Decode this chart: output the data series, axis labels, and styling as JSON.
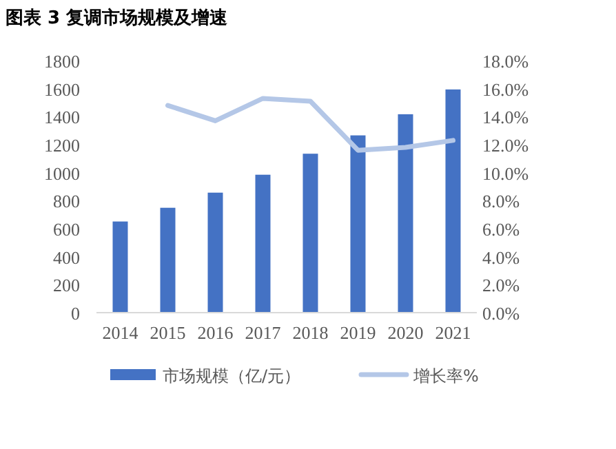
{
  "chart_data": {
    "type": "bar",
    "title": "图表 3 复调市场规模及增速",
    "categories": [
      "2014",
      "2015",
      "2016",
      "2017",
      "2018",
      "2019",
      "2020",
      "2021"
    ],
    "series": [
      {
        "name": "市场规模（亿/元）",
        "color": "#4472c4",
        "values": [
          651,
          749,
          857,
          985,
          1135,
          1266,
          1417,
          1594
        ]
      },
      {
        "name": "增长率%",
        "type": "line",
        "axis": "y2",
        "color": "#b4c7e7",
        "values": [
          null,
          14.8,
          13.7,
          15.3,
          15.1,
          11.6,
          11.8,
          12.3
        ]
      }
    ],
    "ylim": [
      0,
      1800
    ],
    "yticks": [
      0,
      200,
      400,
      600,
      800,
      1000,
      1200,
      1400,
      1600,
      1800
    ],
    "y2lim": [
      0,
      18
    ],
    "y2ticks": [
      {
        "value": 0,
        "label": "0.0%"
      },
      {
        "value": 2,
        "label": "2.0%"
      },
      {
        "value": 4,
        "label": "4.0%"
      },
      {
        "value": 6,
        "label": "6.0%"
      },
      {
        "value": 8,
        "label": "8.0%"
      },
      {
        "value": 10,
        "label": "10.0%"
      },
      {
        "value": 12,
        "label": "12.0%"
      },
      {
        "value": 14,
        "label": "14.0%"
      },
      {
        "value": 16,
        "label": "16.0%"
      },
      {
        "value": 18,
        "label": "18.0%"
      }
    ],
    "legend": "bottom"
  }
}
